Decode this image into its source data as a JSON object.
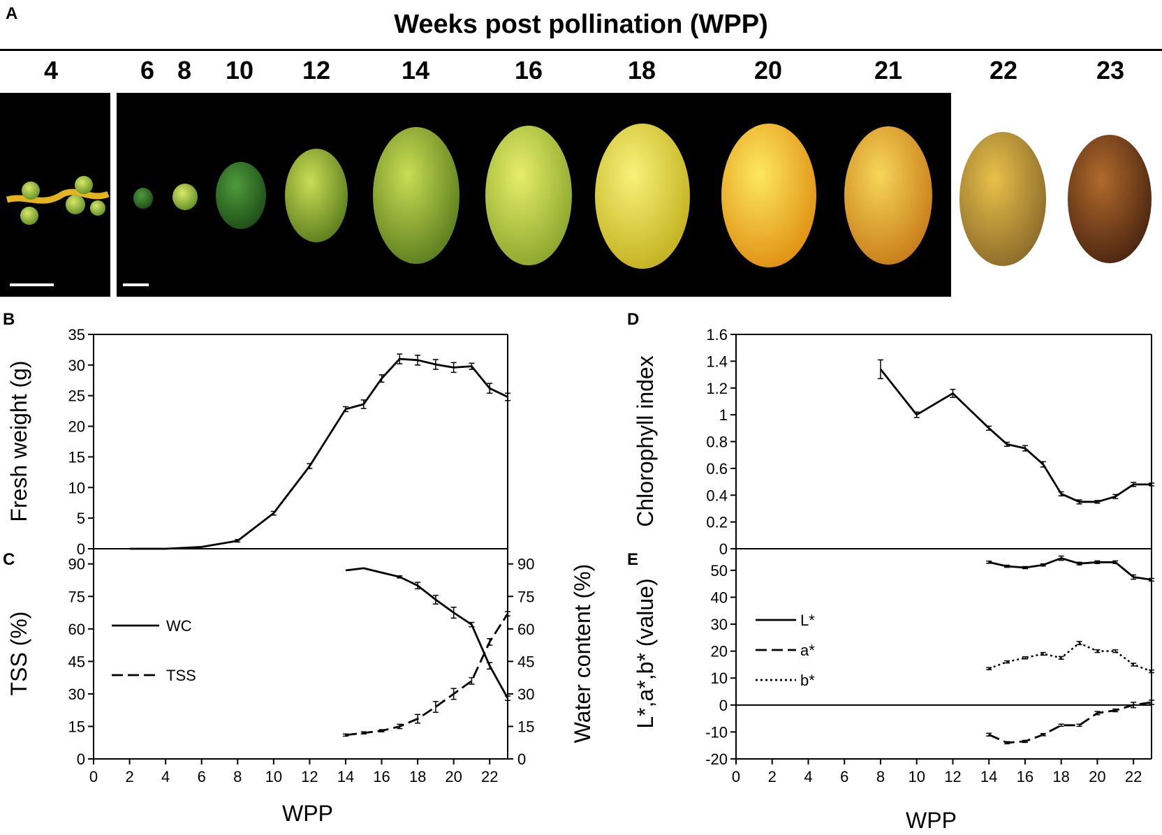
{
  "panel_letters": {
    "a": "A",
    "b": "B",
    "c": "C",
    "d": "D",
    "e": "E"
  },
  "photo_panel": {
    "title": "Weeks post pollination (WPP)",
    "weeks": [
      "4",
      "6",
      "8",
      "10",
      "12",
      "14",
      "16",
      "18",
      "20",
      "21",
      "22",
      "23"
    ]
  },
  "colors": {
    "line": "#000000",
    "photo_bg": "#000000"
  },
  "chart_data": [
    {
      "id": "B",
      "type": "line",
      "ylabel": "Fresh weight (g)",
      "xlabel": "",
      "xlim": [
        0,
        23
      ],
      "ylim": [
        0,
        35
      ],
      "yticks": [
        0,
        5,
        10,
        15,
        20,
        25,
        30,
        35
      ],
      "series": [
        {
          "name": "Fresh weight",
          "style": "solid",
          "x": [
            2,
            4,
            6,
            8,
            10,
            12,
            14,
            15,
            16,
            17,
            18,
            19,
            20,
            21,
            22,
            23
          ],
          "y": [
            0,
            0,
            0.3,
            1.3,
            5.8,
            13.5,
            22.8,
            23.6,
            27.8,
            31.0,
            30.8,
            30.1,
            29.6,
            29.8,
            26.2,
            24.8
          ],
          "err": [
            0,
            0,
            0,
            0.2,
            0.3,
            0.4,
            0.4,
            0.7,
            0.6,
            0.8,
            0.8,
            0.8,
            0.8,
            0.5,
            0.8,
            0.6
          ]
        }
      ]
    },
    {
      "id": "C",
      "type": "line",
      "ylabel": "TSS (%)",
      "ylabel_right": "Water content (%)",
      "xlabel": "WPP",
      "xlim": [
        0,
        23
      ],
      "ylim": [
        0,
        97
      ],
      "yticks": [
        0,
        15,
        30,
        45,
        60,
        75,
        90
      ],
      "xticks": [
        0,
        2,
        4,
        6,
        8,
        10,
        12,
        14,
        16,
        18,
        20,
        22
      ],
      "legend": [
        {
          "label": "WC",
          "style": "solid"
        },
        {
          "label": "TSS",
          "style": "dashed"
        }
      ],
      "series": [
        {
          "name": "WC",
          "style": "solid",
          "x": [
            14,
            15,
            16,
            17,
            18,
            19,
            20,
            21,
            22,
            23
          ],
          "y": [
            87,
            88,
            86,
            84,
            80,
            73.5,
            67.5,
            62,
            43,
            28
          ],
          "err": [
            0,
            0,
            0,
            0.5,
            1.5,
            2,
            2.5,
            1,
            1.5,
            1
          ]
        },
        {
          "name": "TSS",
          "style": "dashed",
          "x": [
            14,
            15,
            16,
            17,
            18,
            19,
            20,
            21,
            22,
            23
          ],
          "y": [
            11,
            12,
            13,
            15,
            18.5,
            24,
            30,
            36,
            54,
            67
          ],
          "err": [
            0.5,
            0.5,
            0.5,
            1,
            2,
            2.5,
            2.5,
            1.5,
            1.5,
            1
          ]
        }
      ]
    },
    {
      "id": "D",
      "type": "line",
      "ylabel": "Chlorophyll index",
      "xlabel": "",
      "xlim": [
        0,
        23
      ],
      "ylim": [
        0,
        1.6
      ],
      "yticks": [
        0,
        0.2,
        0.4,
        0.6,
        0.8,
        1,
        1.2,
        1.4,
        1.6
      ],
      "ytick_labels": [
        "0",
        "0.2",
        "0.4",
        "0.6",
        "0.8",
        "1",
        "1.2",
        "1.4",
        "1.6"
      ],
      "series": [
        {
          "name": "Chlorophyll index",
          "style": "solid",
          "x": [
            8,
            10,
            12,
            14,
            15,
            16,
            17,
            18,
            19,
            20,
            21,
            22,
            23
          ],
          "y": [
            1.34,
            1.0,
            1.16,
            0.9,
            0.78,
            0.75,
            0.63,
            0.41,
            0.35,
            0.35,
            0.39,
            0.48,
            0.48
          ],
          "err": [
            0.07,
            0.02,
            0.03,
            0.015,
            0.015,
            0.02,
            0.02,
            0.015,
            0.015,
            0.01,
            0.015,
            0.015,
            0.01
          ]
        }
      ]
    },
    {
      "id": "E",
      "type": "line",
      "ylabel": "L*,a*,b* (value)",
      "xlabel": "WPP",
      "xlim": [
        0,
        23
      ],
      "ylim": [
        -20,
        58
      ],
      "yticks": [
        -20,
        -10,
        0,
        10,
        20,
        30,
        40,
        50
      ],
      "xticks": [
        0,
        2,
        4,
        6,
        8,
        10,
        12,
        14,
        16,
        18,
        20,
        22
      ],
      "legend": [
        {
          "label": "L*",
          "style": "solid"
        },
        {
          "label": "a*",
          "style": "dashed"
        },
        {
          "label": "b*",
          "style": "dotted"
        }
      ],
      "series": [
        {
          "name": "L*",
          "style": "solid",
          "x": [
            14,
            15,
            16,
            17,
            18,
            19,
            20,
            21,
            22,
            23
          ],
          "y": [
            53,
            51.5,
            51,
            52,
            54.5,
            52.5,
            53,
            53,
            47.5,
            46.5
          ],
          "err": [
            0.4,
            0.4,
            0.4,
            0.4,
            0.8,
            0.5,
            0.5,
            0.5,
            0.8,
            0.5
          ]
        },
        {
          "name": "a*",
          "style": "dashed",
          "x": [
            14,
            15,
            16,
            17,
            18,
            19,
            20,
            21,
            22,
            23
          ],
          "y": [
            -11,
            -14,
            -13.5,
            -11,
            -7.5,
            -7.5,
            -3,
            -2,
            0,
            1
          ],
          "err": [
            0.5,
            0.4,
            0.4,
            0.4,
            0.4,
            0.4,
            0.6,
            0.5,
            1,
            0.8
          ]
        },
        {
          "name": "b*",
          "style": "dotted",
          "x": [
            14,
            15,
            16,
            17,
            18,
            19,
            20,
            21,
            22,
            23
          ],
          "y": [
            13.5,
            16,
            17.5,
            19,
            17.5,
            23,
            20,
            20,
            15,
            12.5
          ],
          "err": [
            0.4,
            0.4,
            0.4,
            0.5,
            0.5,
            0.6,
            0.5,
            0.5,
            0.5,
            0.5
          ]
        }
      ]
    }
  ]
}
